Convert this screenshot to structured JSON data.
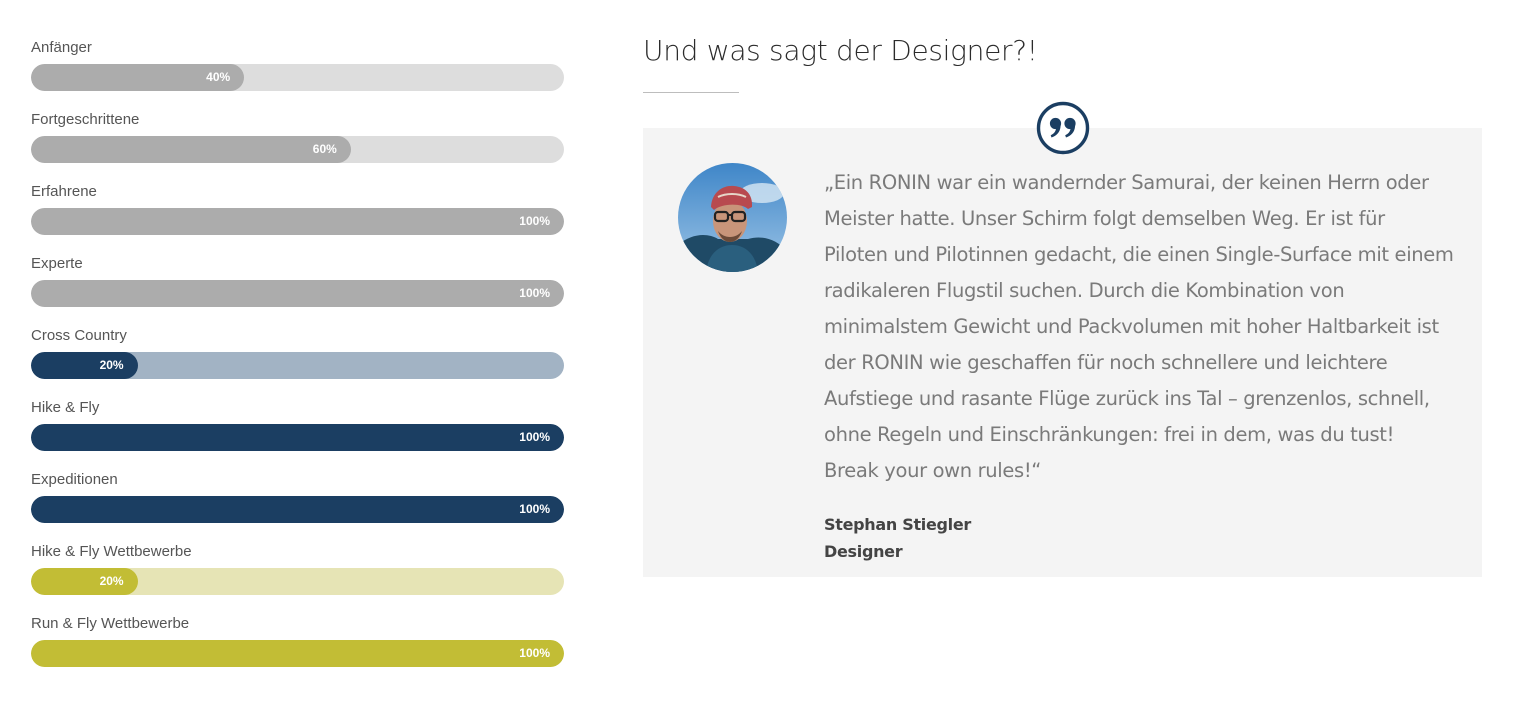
{
  "skills": [
    {
      "label": "Anfänger",
      "percent": 40,
      "pct_text": "40%",
      "fill": "#acacac",
      "track": "#dddddd"
    },
    {
      "label": "Fortgeschrittene",
      "percent": 60,
      "pct_text": "60%",
      "fill": "#acacac",
      "track": "#dddddd"
    },
    {
      "label": "Erfahrene",
      "percent": 100,
      "pct_text": "100%",
      "fill": "#acacac",
      "track": "#dddddd"
    },
    {
      "label": "Experte",
      "percent": 100,
      "pct_text": "100%",
      "fill": "#acacac",
      "track": "#dddddd"
    },
    {
      "label": "Cross Country",
      "percent": 20,
      "pct_text": "20%",
      "fill": "#1b3e62",
      "track": "#a2b3c4"
    },
    {
      "label": "Hike & Fly",
      "percent": 100,
      "pct_text": "100%",
      "fill": "#1b3e62",
      "track": "#a2b3c4"
    },
    {
      "label": "Expeditionen",
      "percent": 100,
      "pct_text": "100%",
      "fill": "#1b3e62",
      "track": "#a2b3c4"
    },
    {
      "label": "Hike & Fly Wettbewerbe",
      "percent": 20,
      "pct_text": "20%",
      "fill": "#c2bd35",
      "track": "#e6e4b5"
    },
    {
      "label": "Run & Fly Wettbewerbe",
      "percent": 100,
      "pct_text": "100%",
      "fill": "#c2bd35",
      "track": "#e6e4b5"
    }
  ],
  "testimonial": {
    "heading": "Und was sagt der Designer?!",
    "quote": "„Ein RONIN war ein wandernder Samurai, der keinen Herrn oder Meister hatte. Unser Schirm folgt demselben Weg. Er ist für Piloten und Pilotinnen gedacht, die einen Single-Surface mit einem radikaleren Flugstil suchen. Durch die Kombination von minimalstem Gewicht und Packvolumen mit hoher Haltbarkeit ist der RONIN wie geschaffen für noch schnellere und leichtere Aufstiege und rasante Flüge zurück ins Tal – grenzenlos, schnell, ohne Regeln und Einschränkungen: frei in dem, was du tust! Break your own rules!“",
    "author_name": "Stephan Stiegler",
    "author_role": "Designer",
    "quote_icon": "quote-icon",
    "accent_color": "#1b3e62"
  }
}
